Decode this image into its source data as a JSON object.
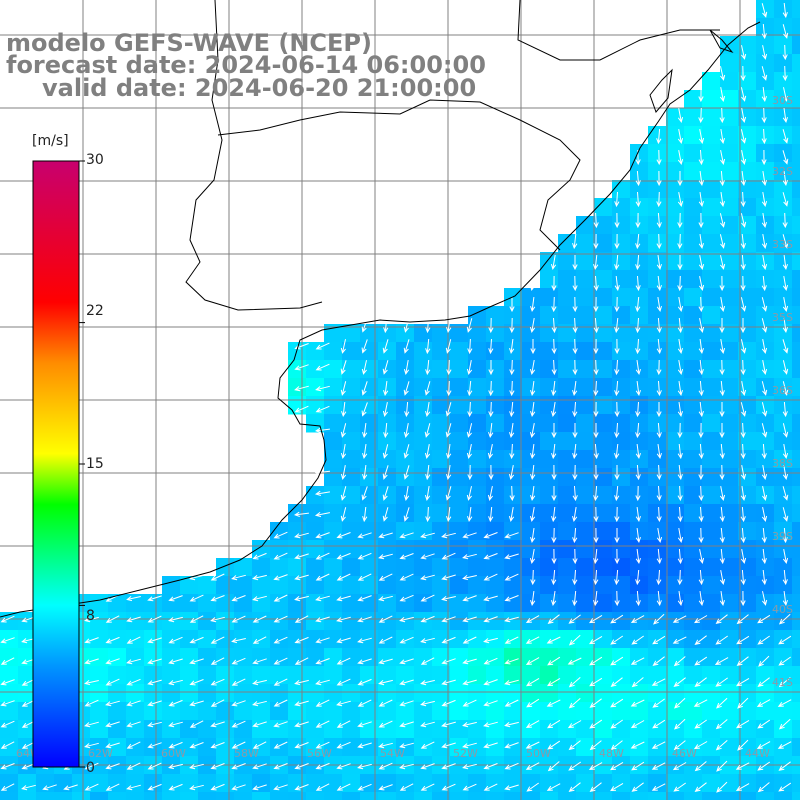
{
  "title": {
    "line1": "modelo GEFS-WAVE (NCEP)",
    "line2": "forecast date: 2024-06-14 06:00:00",
    "line3": "valid date: 2024-06-20 21:00:00"
  },
  "colorbar": {
    "unit": "[m/s]",
    "ticks": [
      "30",
      "22",
      "15",
      "8",
      "0"
    ],
    "tick_values": [
      30,
      22,
      15,
      8,
      0
    ],
    "max": 30,
    "stops": [
      "#0000ff",
      "#0096ff",
      "#00ffff",
      "#00ff00",
      "#ffff00",
      "#ff8c00",
      "#ff0000",
      "#c8006e"
    ]
  },
  "grid": {
    "lon_labels": [
      "64W",
      "62W",
      "60W",
      "58W",
      "56W",
      "54W",
      "52W",
      "50W",
      "48W",
      "46W",
      "44W"
    ],
    "lat_labels": [
      "30S",
      "32S",
      "33S",
      "35S",
      "36S",
      "38S",
      "39S",
      "40S",
      "41S"
    ]
  },
  "colors": {
    "land": "#ffffff",
    "coast": "#000000",
    "grid": "#808080",
    "arrow": "#ffffff",
    "title": "#808080"
  }
}
